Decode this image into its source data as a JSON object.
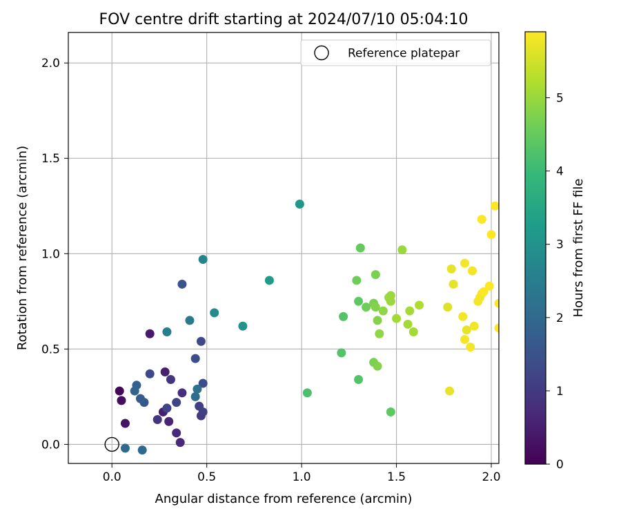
{
  "chart_data": {
    "type": "scatter",
    "title": "FOV centre drift starting at 2024/07/10 05:04:10",
    "xlabel": "Angular distance from reference (arcmin)",
    "ylabel": "Rotation from reference (arcmin)",
    "xlim": [
      -0.23,
      2.04
    ],
    "ylim": [
      -0.1,
      2.16
    ],
    "xticks": [
      0.0,
      0.5,
      1.0,
      1.5,
      2.0
    ],
    "xtick_labels": [
      "0.0",
      "0.5",
      "1.0",
      "1.5",
      "2.0"
    ],
    "yticks": [
      0.0,
      0.5,
      1.0,
      1.5,
      2.0
    ],
    "ytick_labels": [
      "0.0",
      "0.5",
      "1.0",
      "1.5",
      "2.0"
    ],
    "grid": true,
    "legend": {
      "placement": "upper right",
      "entries": [
        {
          "label": "Reference platepar",
          "marker": "open-circle"
        }
      ]
    },
    "reference_point": {
      "x": 0.0,
      "y": 0.0
    },
    "colorbar": {
      "label": "Hours from first FF file",
      "colormap": "viridis",
      "range": [
        0,
        5.9
      ],
      "ticks": [
        0,
        1,
        2,
        3,
        4,
        5
      ],
      "tick_labels": [
        "0",
        "1",
        "2",
        "3",
        "4",
        "5"
      ]
    },
    "points": [
      {
        "x": 0.04,
        "y": 0.28,
        "c": 0.1
      },
      {
        "x": 0.05,
        "y": 0.23,
        "c": 0.2
      },
      {
        "x": 0.07,
        "y": 0.11,
        "c": 0.3
      },
      {
        "x": 0.2,
        "y": 0.58,
        "c": 0.4
      },
      {
        "x": 0.28,
        "y": 0.38,
        "c": 0.5
      },
      {
        "x": 0.27,
        "y": 0.17,
        "c": 0.5
      },
      {
        "x": 0.3,
        "y": 0.12,
        "c": 0.6
      },
      {
        "x": 0.34,
        "y": 0.06,
        "c": 0.7
      },
      {
        "x": 0.36,
        "y": 0.01,
        "c": 0.7
      },
      {
        "x": 0.37,
        "y": 0.27,
        "c": 0.8
      },
      {
        "x": 0.24,
        "y": 0.13,
        "c": 0.9
      },
      {
        "x": 0.31,
        "y": 0.34,
        "c": 0.9
      },
      {
        "x": 0.47,
        "y": 0.15,
        "c": 1.0
      },
      {
        "x": 0.48,
        "y": 0.17,
        "c": 1.1
      },
      {
        "x": 0.46,
        "y": 0.2,
        "c": 1.1
      },
      {
        "x": 0.29,
        "y": 0.19,
        "c": 1.2
      },
      {
        "x": 0.34,
        "y": 0.22,
        "c": 1.2
      },
      {
        "x": 0.2,
        "y": 0.37,
        "c": 1.3
      },
      {
        "x": 0.47,
        "y": 0.54,
        "c": 1.3
      },
      {
        "x": 0.48,
        "y": 0.32,
        "c": 1.4
      },
      {
        "x": 0.44,
        "y": 0.45,
        "c": 1.4
      },
      {
        "x": 0.37,
        "y": 0.84,
        "c": 1.5
      },
      {
        "x": 0.17,
        "y": 0.22,
        "c": 1.6
      },
      {
        "x": 0.15,
        "y": 0.24,
        "c": 1.7
      },
      {
        "x": 0.13,
        "y": 0.31,
        "c": 1.8
      },
      {
        "x": 0.12,
        "y": 0.28,
        "c": 1.9
      },
      {
        "x": 0.07,
        "y": -0.02,
        "c": 2.0
      },
      {
        "x": 0.16,
        "y": -0.03,
        "c": 2.0
      },
      {
        "x": 0.44,
        "y": 0.25,
        "c": 2.1
      },
      {
        "x": 0.45,
        "y": 0.29,
        "c": 2.2
      },
      {
        "x": 0.41,
        "y": 0.65,
        "c": 2.4
      },
      {
        "x": 0.29,
        "y": 0.59,
        "c": 2.5
      },
      {
        "x": 0.48,
        "y": 0.97,
        "c": 2.7
      },
      {
        "x": 0.54,
        "y": 0.69,
        "c": 2.8
      },
      {
        "x": 0.69,
        "y": 0.62,
        "c": 3.0
      },
      {
        "x": 0.83,
        "y": 0.86,
        "c": 3.2
      },
      {
        "x": 0.99,
        "y": 1.26,
        "c": 3.1
      },
      {
        "x": 1.03,
        "y": 0.27,
        "c": 4.2
      },
      {
        "x": 1.21,
        "y": 0.48,
        "c": 4.3
      },
      {
        "x": 1.22,
        "y": 0.67,
        "c": 4.3
      },
      {
        "x": 1.3,
        "y": 0.34,
        "c": 4.3
      },
      {
        "x": 1.3,
        "y": 0.75,
        "c": 4.4
      },
      {
        "x": 1.31,
        "y": 1.03,
        "c": 4.5
      },
      {
        "x": 1.29,
        "y": 0.86,
        "c": 4.6
      },
      {
        "x": 1.34,
        "y": 0.72,
        "c": 4.6
      },
      {
        "x": 1.38,
        "y": 0.74,
        "c": 4.7
      },
      {
        "x": 1.38,
        "y": 0.43,
        "c": 4.7
      },
      {
        "x": 1.39,
        "y": 0.89,
        "c": 4.7
      },
      {
        "x": 1.39,
        "y": 0.72,
        "c": 4.8
      },
      {
        "x": 1.4,
        "y": 0.65,
        "c": 4.8
      },
      {
        "x": 1.4,
        "y": 0.41,
        "c": 4.8
      },
      {
        "x": 1.41,
        "y": 0.58,
        "c": 4.9
      },
      {
        "x": 1.43,
        "y": 0.7,
        "c": 4.9
      },
      {
        "x": 1.46,
        "y": 0.77,
        "c": 5.0
      },
      {
        "x": 1.47,
        "y": 0.78,
        "c": 5.0
      },
      {
        "x": 1.47,
        "y": 0.75,
        "c": 5.0
      },
      {
        "x": 1.47,
        "y": 0.17,
        "c": 4.4
      },
      {
        "x": 1.5,
        "y": 0.66,
        "c": 5.1
      },
      {
        "x": 1.53,
        "y": 1.02,
        "c": 5.0
      },
      {
        "x": 1.56,
        "y": 0.63,
        "c": 5.1
      },
      {
        "x": 1.57,
        "y": 0.7,
        "c": 5.1
      },
      {
        "x": 1.59,
        "y": 0.59,
        "c": 5.1
      },
      {
        "x": 1.62,
        "y": 0.73,
        "c": 5.2
      },
      {
        "x": 1.77,
        "y": 0.72,
        "c": 5.6
      },
      {
        "x": 1.78,
        "y": 0.28,
        "c": 5.7
      },
      {
        "x": 1.79,
        "y": 0.92,
        "c": 5.7
      },
      {
        "x": 1.8,
        "y": 0.84,
        "c": 5.7
      },
      {
        "x": 1.85,
        "y": 0.67,
        "c": 5.8
      },
      {
        "x": 1.86,
        "y": 0.95,
        "c": 5.8
      },
      {
        "x": 1.86,
        "y": 0.55,
        "c": 5.8
      },
      {
        "x": 1.87,
        "y": 0.6,
        "c": 5.7
      },
      {
        "x": 1.89,
        "y": 0.51,
        "c": 5.8
      },
      {
        "x": 1.9,
        "y": 0.91,
        "c": 5.8
      },
      {
        "x": 1.91,
        "y": 0.62,
        "c": 5.8
      },
      {
        "x": 1.93,
        "y": 0.75,
        "c": 5.8
      },
      {
        "x": 1.94,
        "y": 0.77,
        "c": 5.8
      },
      {
        "x": 1.95,
        "y": 0.79,
        "c": 5.8
      },
      {
        "x": 1.96,
        "y": 0.8,
        "c": 5.9
      },
      {
        "x": 1.95,
        "y": 1.18,
        "c": 5.9
      },
      {
        "x": 1.99,
        "y": 0.83,
        "c": 5.9
      },
      {
        "x": 2.0,
        "y": 1.1,
        "c": 5.9
      },
      {
        "x": 2.02,
        "y": 1.25,
        "c": 5.9
      },
      {
        "x": 2.04,
        "y": 0.74,
        "c": 5.9
      },
      {
        "x": 2.04,
        "y": 0.61,
        "c": 5.9
      }
    ]
  }
}
